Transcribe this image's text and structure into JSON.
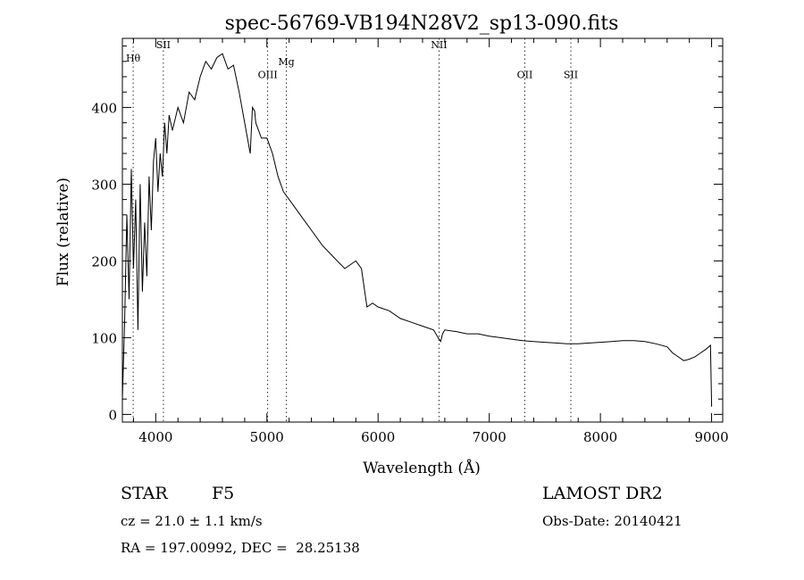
{
  "chart_data": {
    "type": "line",
    "title": "spec-56769-VB194N28V2_sp13-090.fits",
    "xlabel": "Wavelength (Å)",
    "ylabel": "Flux (relative)",
    "xlim": [
      3700,
      9100
    ],
    "ylim": [
      -10,
      490
    ],
    "xticks": [
      4000,
      5000,
      6000,
      7000,
      8000,
      9000
    ],
    "yticks": [
      0,
      100,
      200,
      300,
      400
    ],
    "grid": false,
    "series": [
      {
        "x": [
          3700,
          3720,
          3740,
          3760,
          3780,
          3800,
          3820,
          3840,
          3860,
          3880,
          3900,
          3920,
          3940,
          3960,
          3980,
          4000,
          4020,
          4040,
          4060,
          4080,
          4100,
          4120,
          4150,
          4200,
          4250,
          4300,
          4350,
          4400,
          4450,
          4500,
          4550,
          4600,
          4650,
          4700,
          4750,
          4800,
          4850,
          4870,
          4890,
          4900,
          4950,
          5000,
          5050,
          5100,
          5150,
          5200,
          5300,
          5400,
          5500,
          5600,
          5700,
          5800,
          5850,
          5880,
          5900,
          5950,
          6000,
          6100,
          6200,
          6300,
          6400,
          6500,
          6540,
          6563,
          6580,
          6600,
          6700,
          6800,
          6900,
          7000,
          7100,
          7200,
          7300,
          7400,
          7500,
          7600,
          7700,
          7800,
          7900,
          8000,
          8100,
          8200,
          8300,
          8400,
          8500,
          8600,
          8650,
          8700,
          8750,
          8800,
          8850,
          8900,
          8950,
          8990,
          9000
        ],
        "y": [
          20,
          120,
          260,
          150,
          320,
          190,
          280,
          110,
          300,
          160,
          250,
          180,
          310,
          240,
          330,
          360,
          290,
          340,
          310,
          380,
          340,
          390,
          370,
          400,
          380,
          420,
          410,
          440,
          460,
          450,
          465,
          470,
          450,
          455,
          420,
          380,
          340,
          400,
          395,
          380,
          360,
          360,
          340,
          310,
          290,
          280,
          260,
          240,
          220,
          205,
          190,
          200,
          190,
          160,
          140,
          145,
          140,
          135,
          125,
          120,
          115,
          110,
          100,
          95,
          105,
          110,
          108,
          105,
          105,
          102,
          100,
          98,
          96,
          95,
          94,
          93,
          92,
          92,
          93,
          94,
          95,
          96,
          96,
          95,
          92,
          88,
          80,
          75,
          70,
          72,
          75,
          80,
          85,
          90,
          10
        ]
      }
    ],
    "lines": [
      {
        "label": "Hθ",
        "x": 3797,
        "label_y": 460
      },
      {
        "label": "SII",
        "x": 4069,
        "label_y": 477
      },
      {
        "label": "OIII",
        "x": 5007,
        "label_y": 438
      },
      {
        "label": "Mg",
        "x": 5175,
        "label_y": 455
      },
      {
        "label": "NII",
        "x": 6548,
        "label_y": 477
      },
      {
        "label": "OII",
        "x": 7320,
        "label_y": 438
      },
      {
        "label": "SII",
        "x": 7734,
        "label_y": 438
      }
    ]
  },
  "info": {
    "class_label": "STAR",
    "subclass": "F5",
    "survey": "LAMOST DR2",
    "cz": "cz = 21.0 ± 1.1 km/s",
    "obs_date": "Obs-Date: 20140421",
    "coords": "RA = 197.00992, DEC =  28.25138"
  }
}
